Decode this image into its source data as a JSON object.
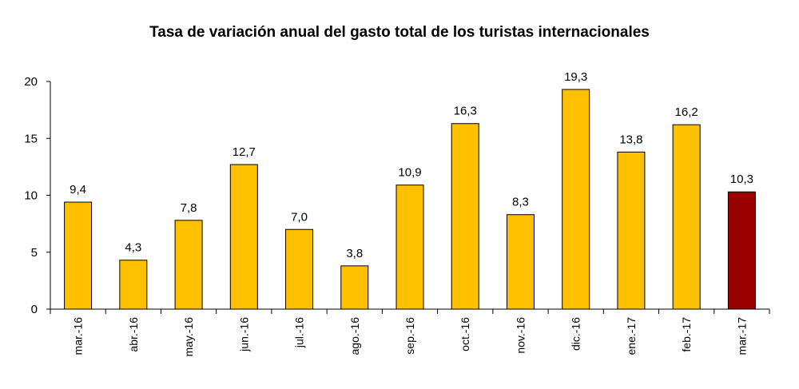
{
  "chart_data": {
    "type": "bar",
    "title": "Tasa de variación anual del gasto total de los turistas internacionales",
    "xlabel": "",
    "ylabel": "",
    "categories": [
      "mar.-16",
      "abr.-16",
      "may.-16",
      "jun.-16",
      "jul.-16",
      "ago.-16",
      "sep.-16",
      "oct.-16",
      "nov.-16",
      "dic.-16",
      "ene.-17",
      "feb.-17",
      "mar.-17"
    ],
    "values": [
      9.4,
      4.3,
      7.8,
      12.7,
      7.0,
      3.8,
      10.9,
      16.3,
      8.3,
      19.3,
      13.8,
      16.2,
      10.3
    ],
    "value_labels": [
      "9,4",
      "4,3",
      "7,8",
      "12,7",
      "7,0",
      "3,8",
      "10,9",
      "16,3",
      "8,3",
      "19,3",
      "13,8",
      "16,2",
      "10,3"
    ],
    "ylim": [
      0,
      20
    ],
    "yticks": [
      0,
      5,
      10,
      15,
      20
    ],
    "grid": false,
    "legend": "none",
    "colors": {
      "bar": "#FFC000",
      "highlight_bar": "#990000",
      "bar_outline": "#000000",
      "axis": "#000000"
    },
    "highlight_index": 12
  }
}
